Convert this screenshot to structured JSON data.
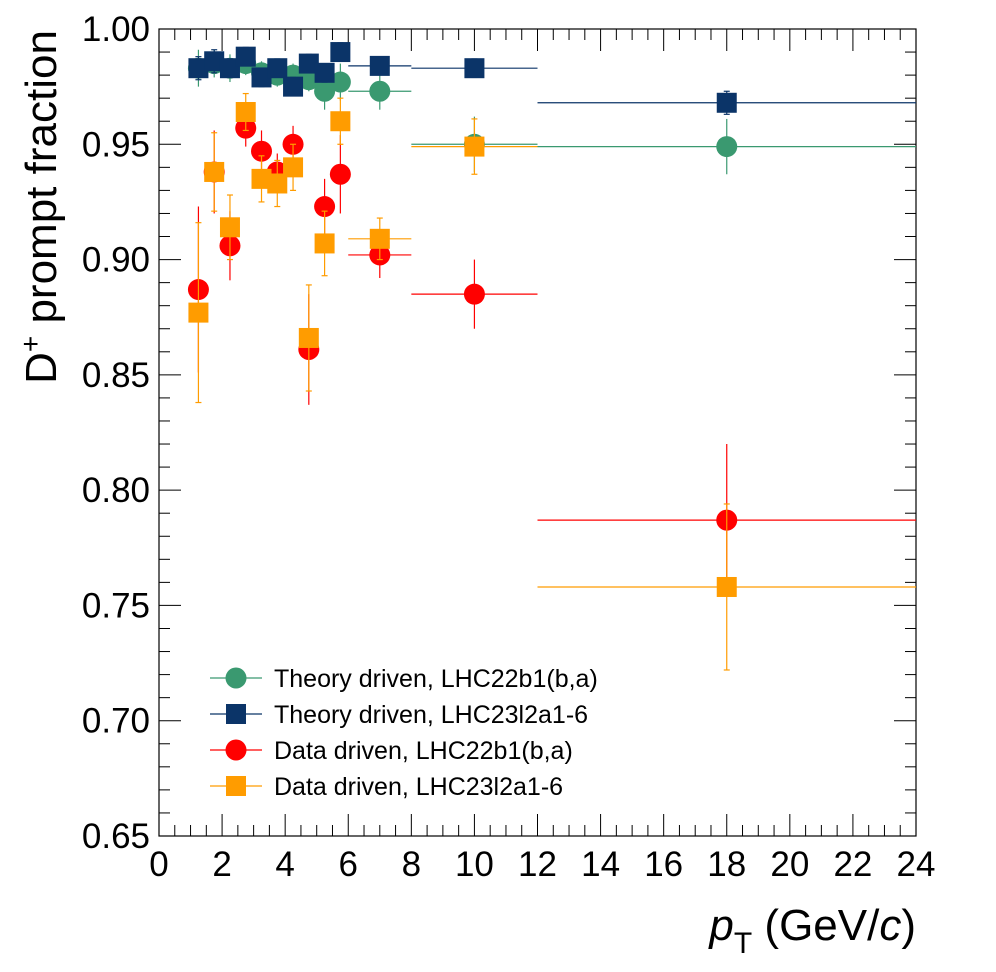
{
  "chart_data": {
    "type": "scatter",
    "title": "",
    "xlabel": {
      "main": "p",
      "sub": "T",
      "unit_pre": " (GeV/",
      "unit_var": "c",
      "unit_post": ")"
    },
    "ylabel": {
      "pre": "D",
      "sup": "+",
      "post": " prompt fraction"
    },
    "xlim": [
      0,
      24
    ],
    "ylim": [
      0.65,
      1.0
    ],
    "x_major_ticks": [
      0,
      2,
      4,
      6,
      8,
      10,
      12,
      14,
      16,
      18,
      20,
      22,
      24
    ],
    "x_tick_labels": [
      "0",
      "2",
      "4",
      "6",
      "8",
      "10",
      "12",
      "14",
      "16",
      "18",
      "20",
      "22",
      "24"
    ],
    "y_major_ticks": [
      0.65,
      0.7,
      0.75,
      0.8,
      0.85,
      0.9,
      0.95,
      1.0
    ],
    "y_tick_labels": [
      "0.65",
      "0.70",
      "0.75",
      "0.80",
      "0.85",
      "0.90",
      "0.95",
      "1.00"
    ],
    "x_minor_step": 0.5,
    "y_minor_step": 0.01,
    "legend_position": "bottom-left",
    "series": [
      {
        "name": "Theory driven, LHC22b1(b,a)",
        "color": "#3a9970",
        "marker": "circle",
        "x": [
          1.25,
          1.75,
          2.25,
          2.75,
          3.25,
          3.75,
          4.25,
          4.75,
          5.25,
          5.75,
          7,
          10,
          18
        ],
        "xerr": [
          0.25,
          0.25,
          0.25,
          0.25,
          0.25,
          0.25,
          0.25,
          0.25,
          0.25,
          0.25,
          1,
          2,
          6
        ],
        "y": [
          0.983,
          0.985,
          0.983,
          0.985,
          0.981,
          0.98,
          0.98,
          0.978,
          0.973,
          0.977,
          0.973,
          0.95,
          0.949
        ],
        "yerr": [
          0.008,
          0.006,
          0.006,
          0.005,
          0.005,
          0.005,
          0.005,
          0.005,
          0.008,
          0.008,
          0.008,
          0.012,
          0.012
        ]
      },
      {
        "name": "Theory driven, LHC23l2a1-6",
        "color": "#0b3468",
        "marker": "square",
        "x": [
          1.25,
          1.75,
          2.25,
          2.75,
          3.25,
          3.75,
          4.25,
          4.75,
          5.25,
          5.75,
          7,
          10,
          18
        ],
        "xerr": [
          0.25,
          0.25,
          0.25,
          0.25,
          0.25,
          0.25,
          0.25,
          0.25,
          0.25,
          0.25,
          1,
          2,
          6
        ],
        "y": [
          0.983,
          0.986,
          0.983,
          0.988,
          0.979,
          0.983,
          0.975,
          0.985,
          0.981,
          0.99,
          0.984,
          0.983,
          0.968
        ],
        "yerr": [
          0.005,
          0.005,
          0.004,
          0.004,
          0.004,
          0.004,
          0.004,
          0.004,
          0.004,
          0.004,
          0.003,
          0.004,
          0.005
        ]
      },
      {
        "name": "Data driven, LHC22b1(b,a)",
        "color": "#ff0000",
        "marker": "circle",
        "x": [
          1.25,
          1.75,
          2.25,
          2.75,
          3.25,
          3.75,
          4.25,
          4.75,
          5.25,
          5.75,
          7,
          10,
          18
        ],
        "xerr": [
          0.25,
          0.25,
          0.25,
          0.25,
          0.25,
          0.25,
          0.25,
          0.25,
          0.25,
          0.25,
          1,
          2,
          6
        ],
        "y": [
          0.887,
          0.938,
          0.906,
          0.957,
          0.947,
          0.938,
          0.95,
          0.861,
          0.923,
          0.937,
          0.902,
          0.885,
          0.787
        ],
        "yerr": [
          0.036,
          0.018,
          0.015,
          0.008,
          0.009,
          0.008,
          0.008,
          0.024,
          0.012,
          0.017,
          0.01,
          0.015,
          0.033
        ]
      },
      {
        "name": "Data driven, LHC23l2a1-6",
        "color": "#ff9c00",
        "marker": "square",
        "x": [
          1.25,
          1.75,
          2.25,
          2.75,
          3.25,
          3.75,
          4.25,
          4.75,
          5.25,
          5.75,
          7,
          10,
          18
        ],
        "xerr": [
          0.25,
          0.25,
          0.25,
          0.25,
          0.25,
          0.25,
          0.25,
          0.25,
          0.25,
          0.25,
          1,
          2,
          6
        ],
        "y": [
          0.877,
          0.938,
          0.914,
          0.964,
          0.935,
          0.933,
          0.94,
          0.866,
          0.907,
          0.96,
          0.909,
          0.949,
          0.758
        ],
        "yerr": [
          0.039,
          0.017,
          0.014,
          0.008,
          0.01,
          0.01,
          0.01,
          0.023,
          0.014,
          0.01,
          0.009,
          0.012,
          0.036
        ]
      }
    ]
  }
}
